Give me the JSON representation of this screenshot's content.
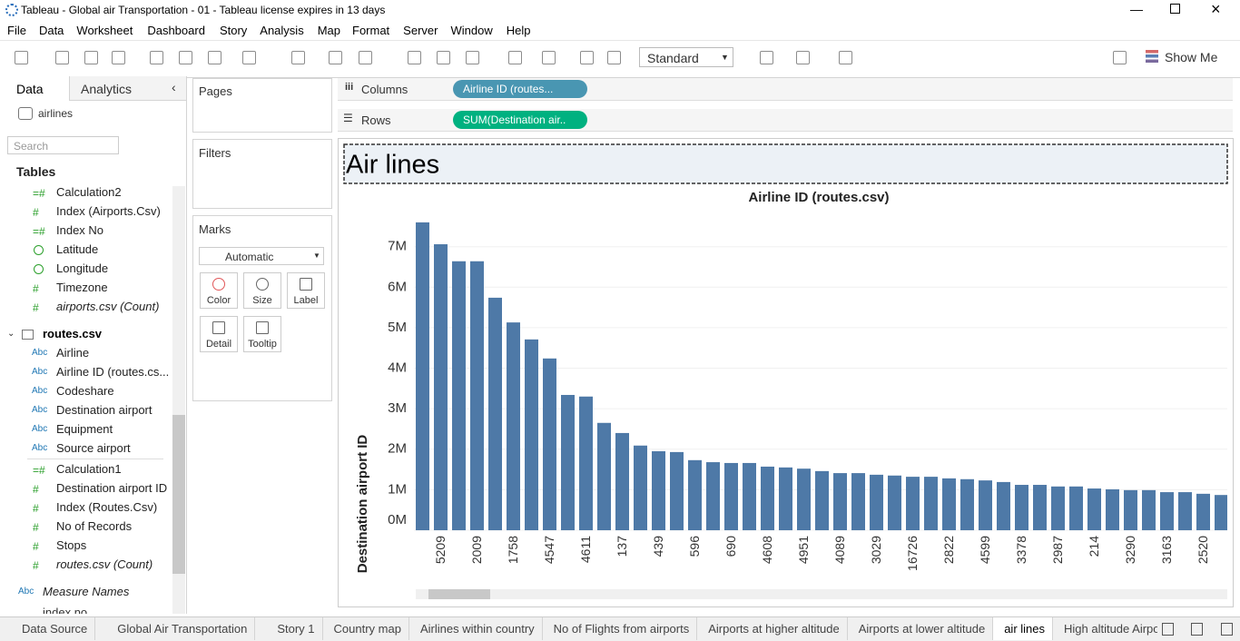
{
  "window": {
    "title": "Tableau - Global air Transportation  - 01 - Tableau license expires in 13 days"
  },
  "menu": [
    "File",
    "Data",
    "Worksheet",
    "Dashboard",
    "Story",
    "Analysis",
    "Map",
    "Format",
    "Server",
    "Window",
    "Help"
  ],
  "toolbar": {
    "mark_type": "Standard",
    "show_me": "Show Me"
  },
  "data_pane": {
    "tabs": [
      "Data",
      "Analytics"
    ],
    "datasource": "airlines",
    "search": "Search",
    "tables_heading": "Tables",
    "fields": [
      {
        "icon": "=#",
        "name": "Calculation2"
      },
      {
        "icon": "#",
        "name": "Index (Airports.Csv)"
      },
      {
        "icon": "=#",
        "name": "Index No"
      },
      {
        "name": "Latitude"
      },
      {
        "name": "Longitude"
      },
      {
        "icon": "#",
        "name": "Timezone"
      },
      {
        "icon": "#",
        "name": "airports.csv (Count)",
        "italic": true
      }
    ],
    "table": "routes.csv",
    "dimensions": [
      {
        "icon": "Abc",
        "name": "Airline"
      },
      {
        "icon": "Abc",
        "name": "Airline ID (routes.cs..."
      },
      {
        "icon": "Abc",
        "name": "Codeshare"
      },
      {
        "icon": "Abc",
        "name": "Destination airport"
      },
      {
        "icon": "Abc",
        "name": "Equipment"
      },
      {
        "icon": "Abc",
        "name": "Source airport"
      }
    ],
    "measures": [
      {
        "icon": "=#",
        "name": "Calculation1"
      },
      {
        "icon": "#",
        "name": "Destination airport ID"
      },
      {
        "icon": "#",
        "name": "Index (Routes.Csv)"
      },
      {
        "icon": "#",
        "name": "No of Records"
      },
      {
        "icon": "#",
        "name": "Stops"
      },
      {
        "icon": "#",
        "name": "routes.csv (Count)",
        "italic": true
      }
    ],
    "extra": [
      {
        "icon": "Abc",
        "name": "Measure Names",
        "italic": true
      },
      {
        "icon": "=#",
        "name": "index no"
      }
    ]
  },
  "cards": {
    "pages": "Pages",
    "filters": "Filters",
    "marks": "Marks",
    "mark_type": "Automatic",
    "buttons": [
      "Color",
      "Size",
      "Label",
      "Detail",
      "Tooltip"
    ]
  },
  "shelves": {
    "columns": {
      "label": "Columns",
      "pill": "Airline ID (routes..."
    },
    "rows": {
      "label": "Rows",
      "pill": "SUM(Destination air.."
    }
  },
  "sheet_tabs": [
    {
      "name": "Data Source"
    },
    {
      "name": "Global Air Transportation"
    },
    {
      "name": "Story 1"
    },
    {
      "name": "Country map"
    },
    {
      "name": "Airlines within country"
    },
    {
      "name": "No of Flights from airports"
    },
    {
      "name": "Airports at higher altitude"
    },
    {
      "name": "Airports at lower altitude"
    },
    {
      "name": "air lines",
      "active": true
    },
    {
      "name": "High altitude Airport"
    }
  ],
  "chart_data": {
    "type": "bar",
    "title": "Air lines",
    "x_label": "Airline ID (routes.csv)",
    "y_label": "Destination airport ID",
    "color": "#4e79a7",
    "grid": true,
    "categories": [
      null,
      "5209",
      null,
      "2009",
      null,
      "1758",
      null,
      "4547",
      null,
      "4611",
      null,
      "137",
      null,
      "439",
      null,
      "596",
      null,
      "690",
      null,
      "4608",
      null,
      "4951",
      null,
      "4089",
      null,
      "3029",
      null,
      "16726",
      null,
      "2822",
      null,
      "4599",
      null,
      "3378",
      null,
      "2987",
      null,
      "214",
      null,
      "3290",
      null,
      "3163",
      null,
      "2520",
      null
    ],
    "values": [
      7600000,
      7060000,
      6640000,
      6640000,
      5740000,
      5130000,
      4710000,
      4240000,
      3340000,
      3300000,
      2650000,
      2400000,
      2090000,
      1950000,
      1930000,
      1730000,
      1680000,
      1660000,
      1660000,
      1570000,
      1550000,
      1520000,
      1460000,
      1410000,
      1410000,
      1370000,
      1350000,
      1320000,
      1320000,
      1280000,
      1260000,
      1230000,
      1190000,
      1120000,
      1120000,
      1080000,
      1080000,
      1030000,
      1010000,
      990000,
      990000,
      940000,
      940000,
      900000,
      870000
    ],
    "ylim": [
      0,
      7800000
    ],
    "yticks": [
      {
        "value": 0,
        "label": "0M"
      },
      {
        "value": 1000000,
        "label": "1M"
      },
      {
        "value": 2000000,
        "label": "2M"
      },
      {
        "value": 3000000,
        "label": "3M"
      },
      {
        "value": 4000000,
        "label": "4M"
      },
      {
        "value": 5000000,
        "label": "5M"
      },
      {
        "value": 6000000,
        "label": "6M"
      },
      {
        "value": 7000000,
        "label": "7M"
      }
    ]
  }
}
